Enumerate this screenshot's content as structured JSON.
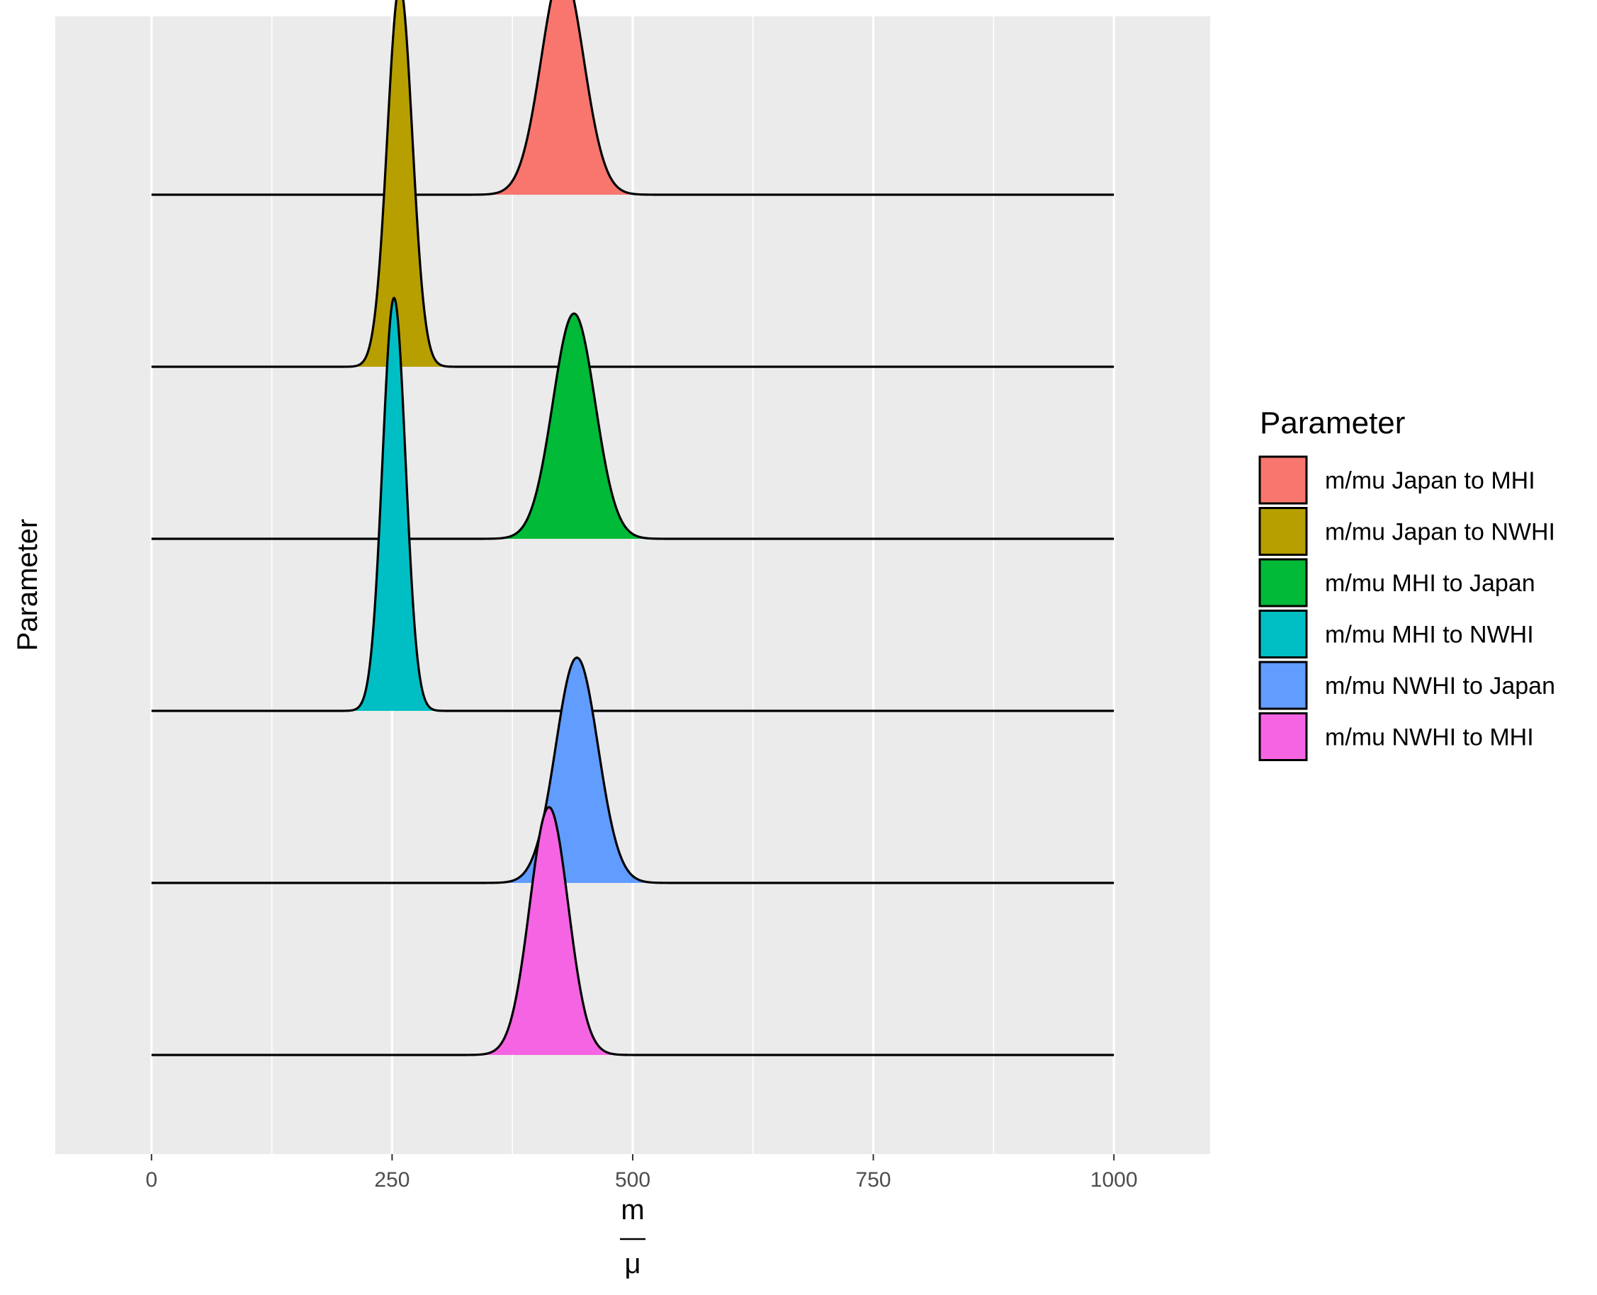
{
  "chart_data": {
    "type": "ridgeline",
    "xlabel": {
      "numerator": "m",
      "denominator": "μ"
    },
    "ylabel": "Parameter",
    "xlim": [
      -100,
      1100
    ],
    "xticks": [
      0,
      250,
      500,
      750,
      1000
    ],
    "xtick_labels": [
      "0",
      "250",
      "500",
      "750",
      "1000"
    ],
    "x_range_plotted": [
      0,
      1000
    ],
    "grid": true,
    "legend": {
      "title": "Parameter",
      "position": "right"
    },
    "series": [
      {
        "name": "m/mu Japan to MHI",
        "color": "#F8766D",
        "mean": 427,
        "sd": 22
      },
      {
        "name": "m/mu Japan to NWHI",
        "color": "#B79F00",
        "mean": 258,
        "sd": 13
      },
      {
        "name": "m/mu MHI to Japan",
        "color": "#00BA38",
        "mean": 439,
        "sd": 22
      },
      {
        "name": "m/mu MHI to NWHI",
        "color": "#00BFC4",
        "mean": 252,
        "sd": 12
      },
      {
        "name": "m/mu NWHI to Japan",
        "color": "#619CFF",
        "mean": 442,
        "sd": 22
      },
      {
        "name": "m/mu NWHI to MHI",
        "color": "#F564E3",
        "mean": 413,
        "sd": 20
      }
    ]
  }
}
